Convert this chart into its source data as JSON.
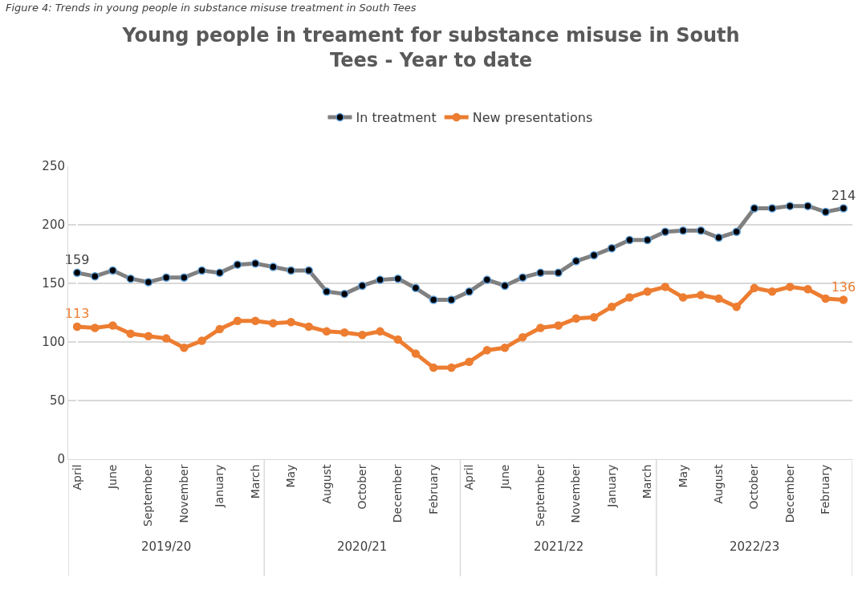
{
  "chart_data": {
    "type": "line",
    "title": "Young people in treament for substance misuse in South Tees - Year to date",
    "categories": [
      "April",
      null,
      "June",
      null,
      "September",
      null,
      "November",
      null,
      "January",
      null,
      "March",
      null,
      "May",
      null,
      "August",
      null,
      "October",
      null,
      "December",
      null,
      "February",
      null,
      "April",
      null,
      "June",
      null,
      "September",
      null,
      "November",
      null,
      "January",
      null,
      "March",
      null,
      "May",
      null,
      "August",
      null,
      "October",
      null,
      "December",
      null,
      "February",
      null
    ],
    "series": [
      {
        "name": "In treatment",
        "color": "#808080",
        "marker": "circle",
        "values": [
          159,
          156,
          161,
          154,
          151,
          155,
          155,
          161,
          159,
          166,
          167,
          164,
          161,
          161,
          143,
          141,
          148,
          153,
          154,
          146,
          136,
          136,
          143,
          153,
          148,
          155,
          159,
          159,
          169,
          174,
          180,
          187,
          187,
          194,
          195,
          195,
          189,
          194,
          214,
          214,
          216,
          216,
          211,
          214
        ],
        "value_labels": [
          "159",
          null,
          null,
          null,
          null,
          null,
          null,
          null,
          null,
          null,
          null,
          null,
          null,
          null,
          null,
          null,
          null,
          null,
          null,
          null,
          null,
          null,
          null,
          null,
          null,
          null,
          null,
          null,
          null,
          null,
          null,
          null,
          null,
          null,
          null,
          null,
          null,
          null,
          null,
          null,
          null,
          null,
          null,
          "214"
        ]
      },
      {
        "name": "New presentations",
        "color": "#ed7d31",
        "marker": "circle",
        "values": [
          113,
          112,
          114,
          107,
          105,
          103,
          95,
          101,
          111,
          118,
          118,
          116,
          117,
          113,
          109,
          108,
          106,
          109,
          102,
          90,
          78,
          78,
          83,
          93,
          95,
          104,
          112,
          114,
          120,
          121,
          130,
          138,
          143,
          147,
          138,
          140,
          137,
          130,
          146,
          143,
          147,
          145,
          137,
          136
        ],
        "value_labels": [
          "113",
          null,
          null,
          null,
          null,
          null,
          null,
          null,
          null,
          null,
          null,
          null,
          null,
          null,
          null,
          null,
          null,
          null,
          null,
          null,
          null,
          null,
          null,
          null,
          null,
          null,
          null,
          null,
          null,
          null,
          null,
          null,
          null,
          null,
          null,
          null,
          null,
          null,
          null,
          null,
          null,
          null,
          null,
          "136"
        ]
      }
    ],
    "ylim": [
      0,
      250
    ],
    "yticks": [
      0,
      50,
      100,
      150,
      200,
      250
    ],
    "grid": "y",
    "legend": "top",
    "line_style": "solid",
    "annotations": [
      "Figure 4: Trends in young people in substance misuse treatment in South Tees",
      "2019/20",
      "2020/21",
      "2021/22",
      "2022/23"
    ]
  }
}
